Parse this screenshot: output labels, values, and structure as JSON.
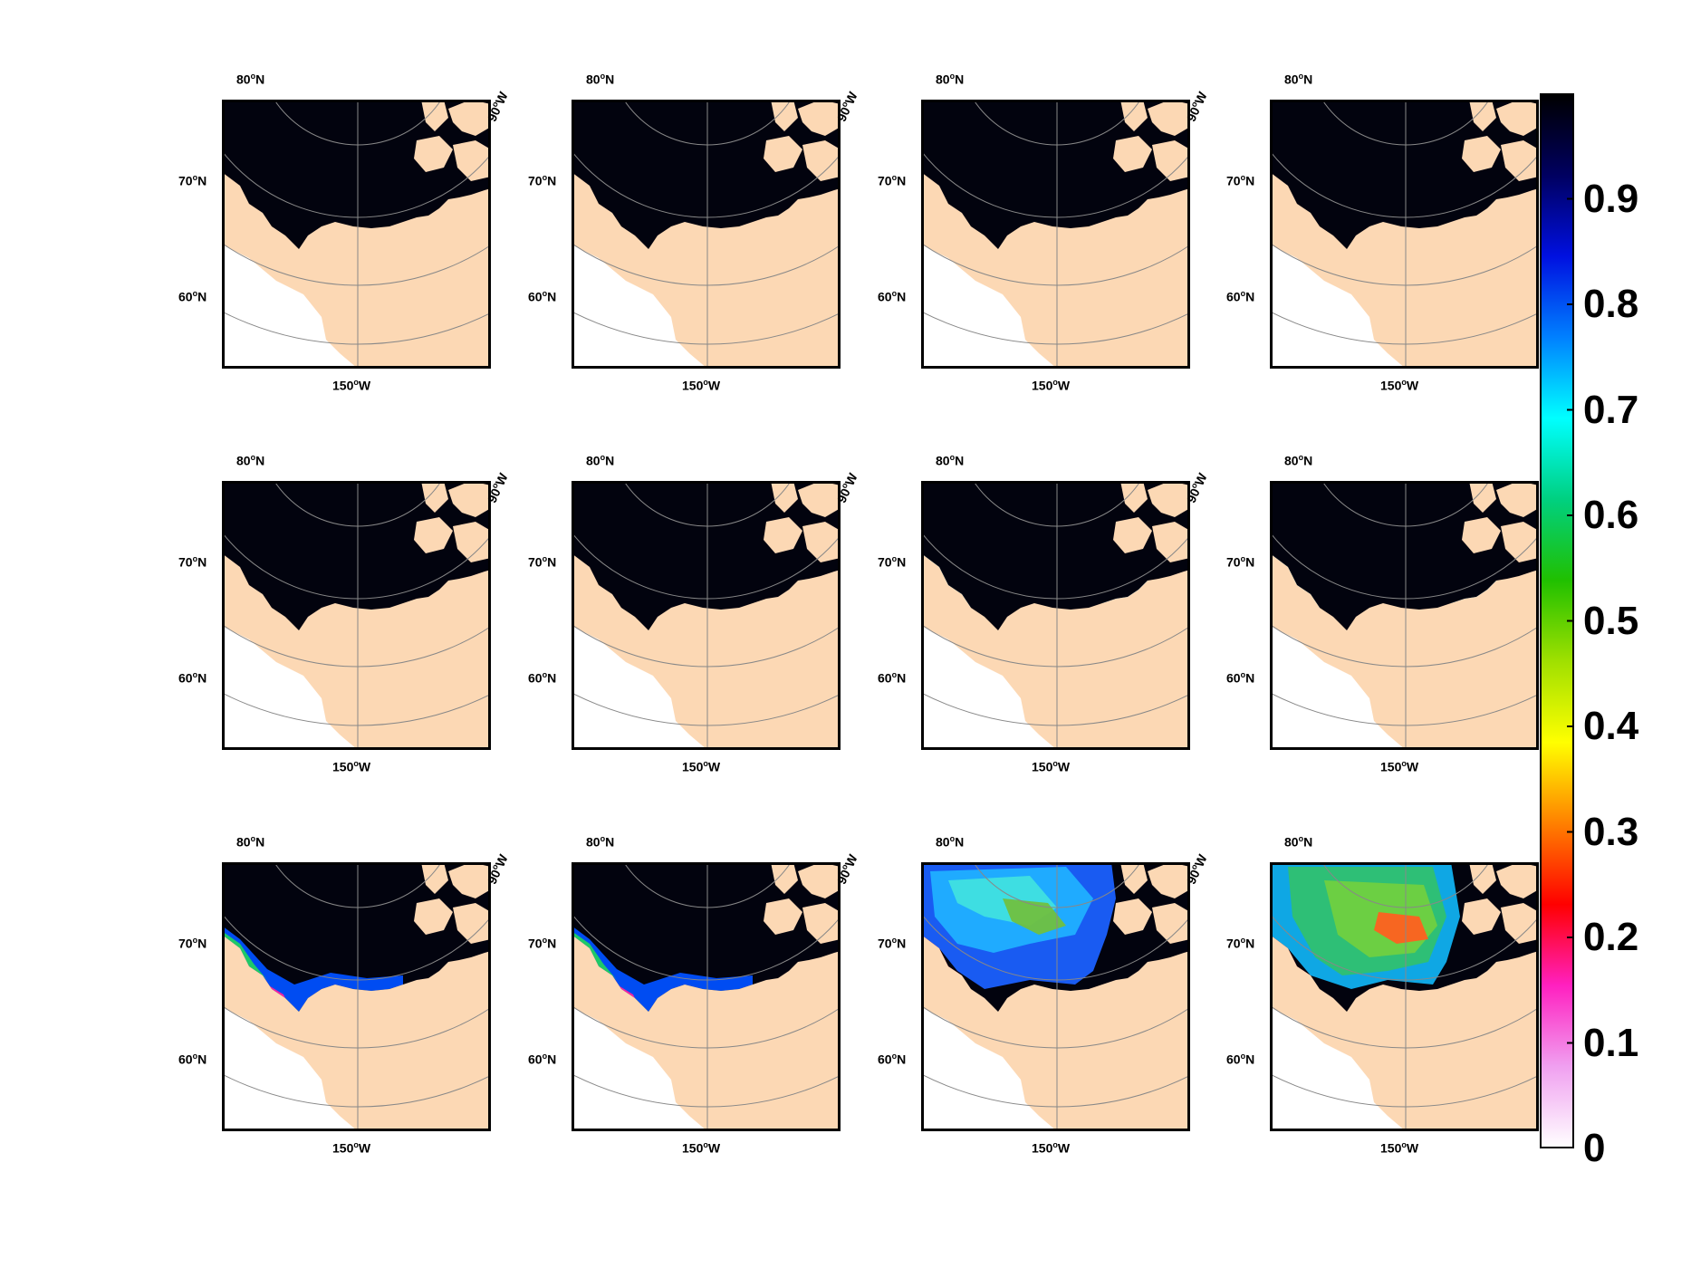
{
  "map_labels": {
    "lat80": "80",
    "lat70": "70",
    "lat60": "60",
    "lon150": "150",
    "lon90": "90",
    "deg_suffix_n": "N",
    "deg_suffix_w": "W"
  },
  "panels": [
    {
      "row": 0,
      "col": 0,
      "ice_level": "full"
    },
    {
      "row": 0,
      "col": 1,
      "ice_level": "full"
    },
    {
      "row": 0,
      "col": 2,
      "ice_level": "full"
    },
    {
      "row": 0,
      "col": 3,
      "ice_level": "full"
    },
    {
      "row": 1,
      "col": 0,
      "ice_level": "full"
    },
    {
      "row": 1,
      "col": 1,
      "ice_level": "full"
    },
    {
      "row": 1,
      "col": 2,
      "ice_level": "edge_melt"
    },
    {
      "row": 1,
      "col": 3,
      "ice_level": "edge_melt"
    },
    {
      "row": 2,
      "col": 0,
      "ice_level": "coastal_melt"
    },
    {
      "row": 2,
      "col": 1,
      "ice_level": "coastal_melt"
    },
    {
      "row": 2,
      "col": 2,
      "ice_level": "broad_melt"
    },
    {
      "row": 2,
      "col": 3,
      "ice_level": "heavy_melt"
    }
  ],
  "colorbar": {
    "ticks": [
      "0.9",
      "0.8",
      "0.7",
      "0.6",
      "0.5",
      "0.4",
      "0.3",
      "0.2",
      "0.1",
      "0"
    ],
    "tick_values": [
      0.9,
      0.8,
      0.7,
      0.6,
      0.5,
      0.4,
      0.3,
      0.2,
      0.1,
      0
    ],
    "min": 0,
    "max": 1,
    "stops": [
      "#ffffff",
      "#f0a0f0",
      "#ff20c0",
      "#ff0000",
      "#ff8000",
      "#ffff00",
      "#a0e000",
      "#20c000",
      "#00d080",
      "#00ffff",
      "#0080ff",
      "#0010e0",
      "#000060",
      "#000000"
    ]
  },
  "colors": {
    "land": "#fcd8b4",
    "ice_full": "#02030e",
    "open_water": "#ffffff",
    "grid": "#888888"
  }
}
